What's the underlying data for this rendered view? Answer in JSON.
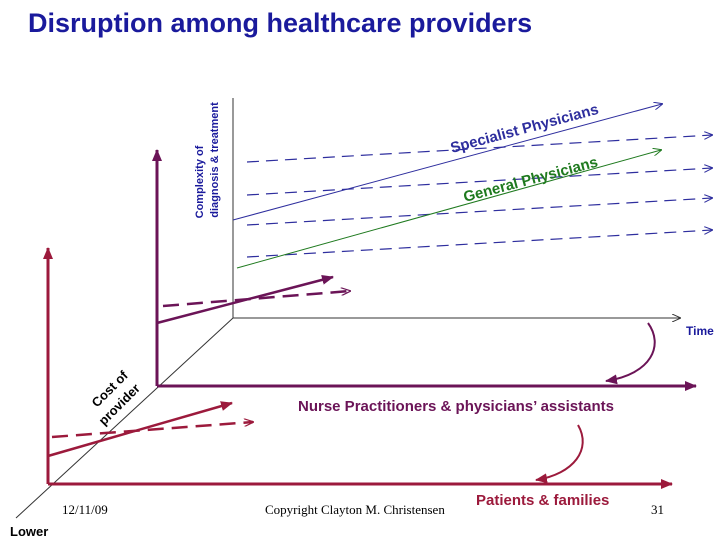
{
  "title": "Disruption among healthcare providers",
  "labels": {
    "y_axis_line1": "Complexity of",
    "y_axis_line2": "diagnosis & treatment",
    "x_axis": "Time",
    "cost_line1": "Cost of",
    "cost_line2": "provider",
    "lower": "Lower",
    "specialist": "Specialist Physicians",
    "general": "General Physicians",
    "nurse": "Nurse Practitioners & physicians’ assistants",
    "patients": "Patients & families"
  },
  "footer": {
    "date": "12/11/09",
    "copyright": "Copyright Clayton M. Christensen",
    "page": "31"
  },
  "colors": {
    "title": "#1a1a9c",
    "blue": "#2e2e9e",
    "green": "#1f7a1f",
    "purple": "#6b1457",
    "crimson": "#9c1a3c",
    "axis_gray": "#444444"
  }
}
